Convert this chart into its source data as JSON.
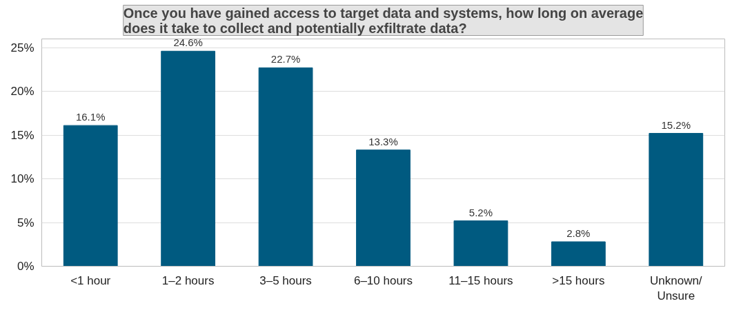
{
  "chart_data": {
    "type": "bar",
    "title": "Once you have gained access to target data and systems, how long on average\ndoes it take to collect and potentially exfiltrate data?",
    "categories": [
      "<1 hour",
      "1–2 hours",
      "3–5 hours",
      "6–10 hours",
      "11–15 hours",
      ">15 hours",
      "Unknown/ Unsure"
    ],
    "values": [
      16.1,
      24.6,
      22.7,
      13.3,
      5.2,
      2.8,
      15.2
    ],
    "value_labels": [
      "16.1%",
      "24.6%",
      "22.7%",
      "13.3%",
      "5.2%",
      "2.8%",
      "15.2%"
    ],
    "color": "#005a80",
    "ylim": [
      0,
      26
    ],
    "yticks": [
      {
        "value": 0,
        "label": "0%"
      },
      {
        "value": 5,
        "label": "5%"
      },
      {
        "value": 10,
        "label": "10%"
      },
      {
        "value": 15,
        "label": "15%"
      },
      {
        "value": 20,
        "label": "20%"
      },
      {
        "value": 25,
        "label": "25%"
      }
    ],
    "grid": "y"
  }
}
